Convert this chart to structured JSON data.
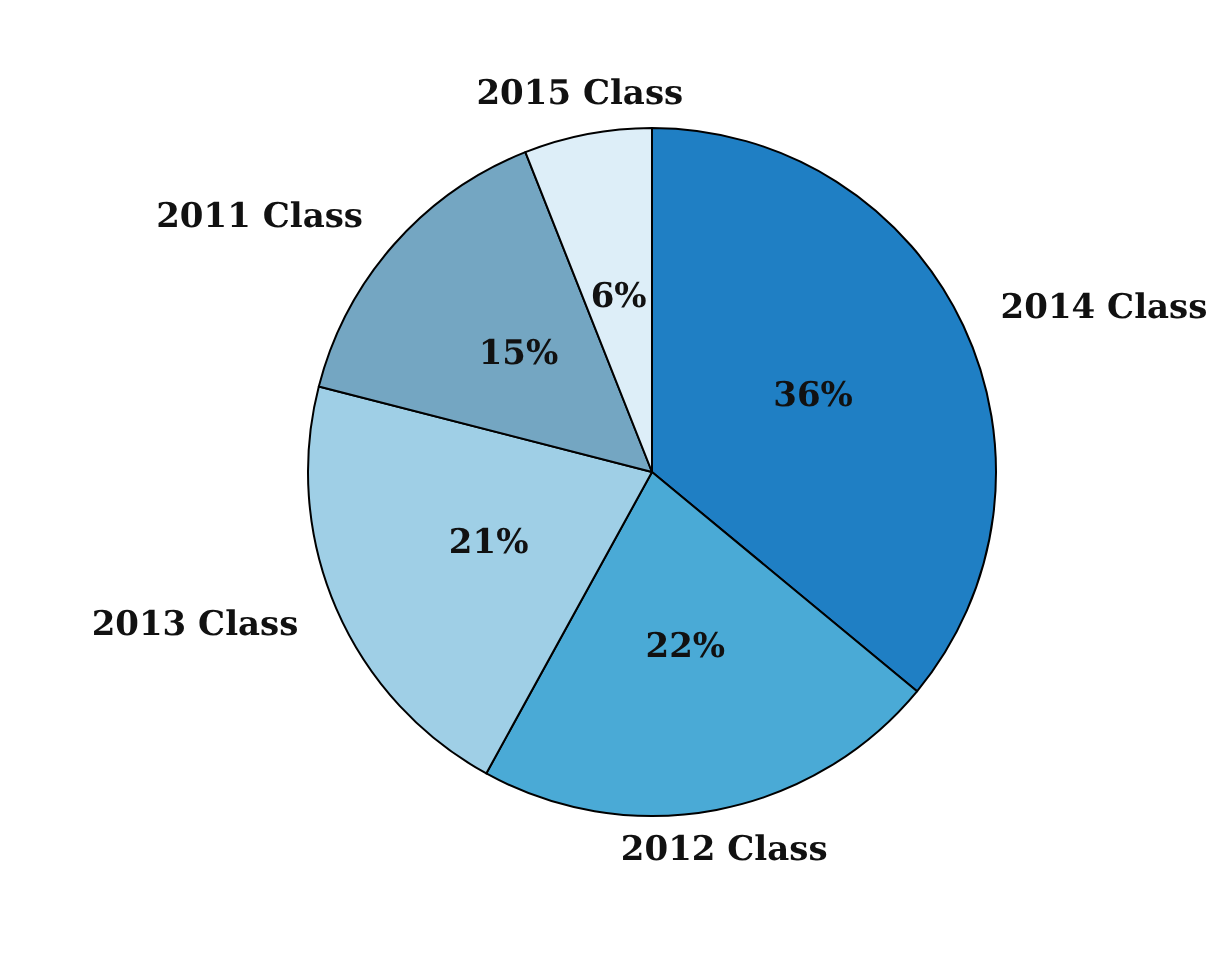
{
  "chart_data": {
    "type": "pie",
    "categories": [
      "2014 Class",
      "2012 Class",
      "2013 Class",
      "2011 Class",
      "2015 Class"
    ],
    "values": [
      36,
      22,
      21,
      15,
      6
    ],
    "value_labels": [
      "36%",
      "22%",
      "21%",
      "15%",
      "6%"
    ],
    "colors": [
      "#1f7fc4",
      "#4aaad6",
      "#9fcfe6",
      "#74a6c2",
      "#ddeef8"
    ],
    "legend": false
  }
}
